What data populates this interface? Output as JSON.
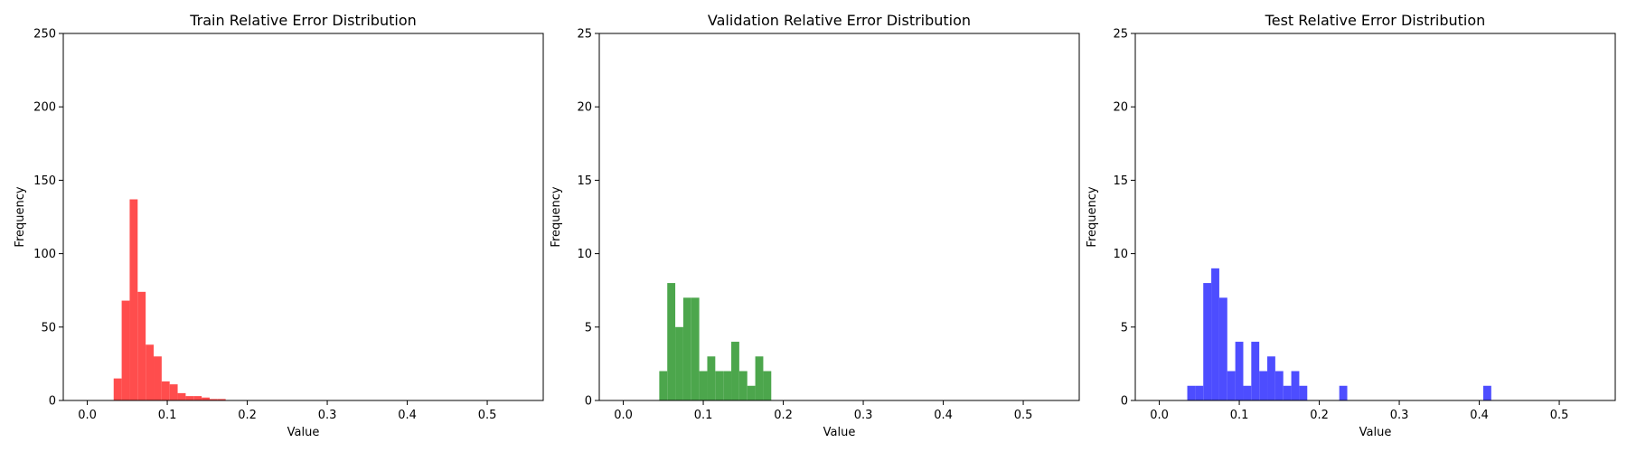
{
  "chart_data": [
    {
      "type": "histogram",
      "title": "Train Relative Error Distribution",
      "xlabel": "Value",
      "ylabel": "Frequency",
      "xlim": [
        -0.03,
        0.57
      ],
      "ylim": [
        0,
        250
      ],
      "xticks": [
        0.0,
        0.1,
        0.2,
        0.3,
        0.4,
        0.5
      ],
      "xtick_labels": [
        "0.0",
        "0.1",
        "0.2",
        "0.3",
        "0.4",
        "0.5"
      ],
      "yticks": [
        0,
        50,
        100,
        150,
        200,
        250
      ],
      "ytick_labels": [
        "0",
        "50",
        "100",
        "150",
        "200",
        "250"
      ],
      "color": "#ff4d4d",
      "bin_width": 0.01,
      "bins": [
        {
          "x0": 0.033,
          "count": 15
        },
        {
          "x0": 0.043,
          "count": 68
        },
        {
          "x0": 0.053,
          "count": 137
        },
        {
          "x0": 0.063,
          "count": 74
        },
        {
          "x0": 0.073,
          "count": 38
        },
        {
          "x0": 0.083,
          "count": 30
        },
        {
          "x0": 0.093,
          "count": 13
        },
        {
          "x0": 0.103,
          "count": 11
        },
        {
          "x0": 0.113,
          "count": 5
        },
        {
          "x0": 0.123,
          "count": 3
        },
        {
          "x0": 0.133,
          "count": 3
        },
        {
          "x0": 0.143,
          "count": 2
        },
        {
          "x0": 0.153,
          "count": 1
        },
        {
          "x0": 0.163,
          "count": 1
        }
      ]
    },
    {
      "type": "histogram",
      "title": "Validation Relative Error Distribution",
      "xlabel": "Value",
      "ylabel": "Frequency",
      "xlim": [
        -0.03,
        0.57
      ],
      "ylim": [
        0,
        25
      ],
      "xticks": [
        0.0,
        0.1,
        0.2,
        0.3,
        0.4,
        0.5
      ],
      "xtick_labels": [
        "0.0",
        "0.1",
        "0.2",
        "0.3",
        "0.4",
        "0.5"
      ],
      "yticks": [
        0,
        5,
        10,
        15,
        20,
        25
      ],
      "ytick_labels": [
        "0",
        "5",
        "10",
        "15",
        "20",
        "25"
      ],
      "color": "#4ca64c",
      "bin_width": 0.01,
      "bins": [
        {
          "x0": 0.045,
          "count": 2
        },
        {
          "x0": 0.055,
          "count": 8
        },
        {
          "x0": 0.065,
          "count": 5
        },
        {
          "x0": 0.075,
          "count": 7
        },
        {
          "x0": 0.085,
          "count": 7
        },
        {
          "x0": 0.095,
          "count": 2
        },
        {
          "x0": 0.105,
          "count": 3
        },
        {
          "x0": 0.115,
          "count": 2
        },
        {
          "x0": 0.125,
          "count": 2
        },
        {
          "x0": 0.135,
          "count": 4
        },
        {
          "x0": 0.145,
          "count": 2
        },
        {
          "x0": 0.155,
          "count": 1
        },
        {
          "x0": 0.165,
          "count": 3
        },
        {
          "x0": 0.175,
          "count": 2
        }
      ]
    },
    {
      "type": "histogram",
      "title": "Test Relative Error Distribution",
      "xlabel": "Value",
      "ylabel": "Frequency",
      "xlim": [
        -0.03,
        0.57
      ],
      "ylim": [
        0,
        25
      ],
      "xticks": [
        0.0,
        0.1,
        0.2,
        0.3,
        0.4,
        0.5
      ],
      "xtick_labels": [
        "0.0",
        "0.1",
        "0.2",
        "0.3",
        "0.4",
        "0.5"
      ],
      "yticks": [
        0,
        5,
        10,
        15,
        20,
        25
      ],
      "ytick_labels": [
        "0",
        "5",
        "10",
        "15",
        "20",
        "25"
      ],
      "color": "#4d4dff",
      "bin_width": 0.01,
      "bins": [
        {
          "x0": 0.035,
          "count": 1
        },
        {
          "x0": 0.045,
          "count": 1
        },
        {
          "x0": 0.055,
          "count": 8
        },
        {
          "x0": 0.065,
          "count": 9
        },
        {
          "x0": 0.075,
          "count": 7
        },
        {
          "x0": 0.085,
          "count": 2
        },
        {
          "x0": 0.095,
          "count": 4
        },
        {
          "x0": 0.105,
          "count": 1
        },
        {
          "x0": 0.115,
          "count": 4
        },
        {
          "x0": 0.125,
          "count": 2
        },
        {
          "x0": 0.135,
          "count": 3
        },
        {
          "x0": 0.145,
          "count": 2
        },
        {
          "x0": 0.155,
          "count": 1
        },
        {
          "x0": 0.165,
          "count": 2
        },
        {
          "x0": 0.175,
          "count": 1
        },
        {
          "x0": 0.225,
          "count": 1
        },
        {
          "x0": 0.405,
          "count": 1
        }
      ]
    }
  ]
}
